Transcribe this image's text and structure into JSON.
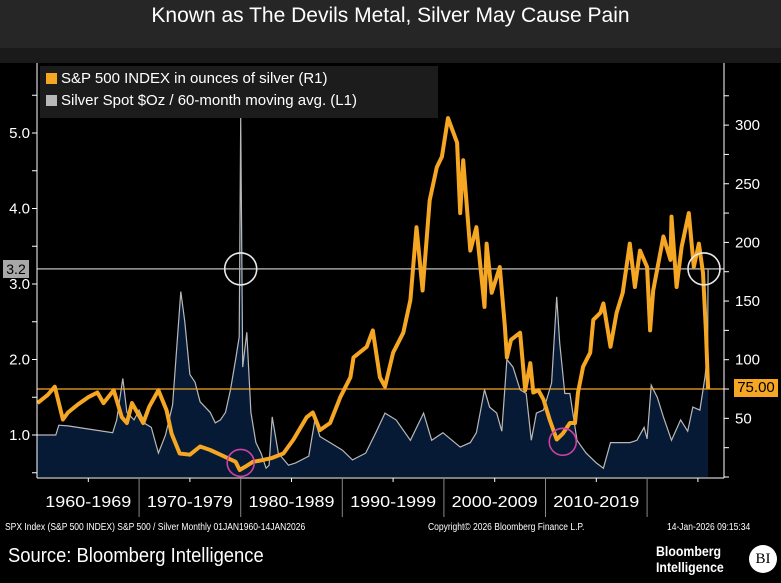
{
  "title": "Known as The Devils Metal, Silver May Cause Pain",
  "legend": [
    {
      "label": "S&P 500 INDEX in ounces of silver (R1)",
      "color": "#f5a623"
    },
    {
      "label": "Silver Spot $Oz / 60-month moving avg. (L1)",
      "color": "#b8b8b8"
    }
  ],
  "chart_data": {
    "type": "line",
    "xlabel": "",
    "x_range": [
      1960,
      2026.04
    ],
    "x_tick_labels": [
      "1960-1969",
      "1970-1979",
      "1980-1989",
      "1990-1999",
      "2000-2009",
      "2010-2019"
    ],
    "left_axis": {
      "range": [
        0.45,
        5.5
      ],
      "tick_labels": [
        "1.0",
        "2.0",
        "3.0",
        "4.0",
        "5.0"
      ],
      "ticks": [
        1,
        2,
        3,
        4,
        5
      ]
    },
    "right_axis": {
      "range": [
        0,
        320
      ],
      "tick_labels": [
        "50",
        "100",
        "150",
        "200",
        "250",
        "300"
      ],
      "ticks": [
        50,
        100,
        150,
        200,
        250,
        300
      ]
    },
    "grid": false,
    "legend_position": "top-left",
    "series": [
      {
        "name": "S&P 500 INDEX in ounces of silver (R1)",
        "axis": "right",
        "color": "#f5a623",
        "points": [
          [
            1960,
            63
          ],
          [
            1961,
            70
          ],
          [
            1961.7,
            77
          ],
          [
            1962.5,
            49
          ],
          [
            1963,
            55
          ],
          [
            1964,
            62
          ],
          [
            1965,
            68
          ],
          [
            1965.9,
            72
          ],
          [
            1966.5,
            63
          ],
          [
            1967.5,
            74
          ],
          [
            1968.3,
            51
          ],
          [
            1968.8,
            46
          ],
          [
            1969.3,
            63
          ],
          [
            1970.4,
            46
          ],
          [
            1971,
            60
          ],
          [
            1971.9,
            74
          ],
          [
            1972.7,
            57
          ],
          [
            1973.2,
            37
          ],
          [
            1974,
            20
          ],
          [
            1975,
            19
          ],
          [
            1976,
            26
          ],
          [
            1977,
            23
          ],
          [
            1978,
            19
          ],
          [
            1979.5,
            13
          ],
          [
            1979.9,
            6
          ],
          [
            1980.5,
            9
          ],
          [
            1981.2,
            13
          ],
          [
            1981.9,
            14
          ],
          [
            1983,
            16
          ],
          [
            1984.2,
            20
          ],
          [
            1985.2,
            32
          ],
          [
            1986.5,
            51
          ],
          [
            1987.1,
            55
          ],
          [
            1987.8,
            40
          ],
          [
            1988.8,
            46
          ],
          [
            1989.8,
            68
          ],
          [
            1990.8,
            85
          ],
          [
            1991.1,
            102
          ],
          [
            1992.4,
            111
          ],
          [
            1993,
            125
          ],
          [
            1993.7,
            85
          ],
          [
            1994.2,
            77
          ],
          [
            1995,
            106
          ],
          [
            1996,
            123
          ],
          [
            1996.7,
            151
          ],
          [
            1997.3,
            213
          ],
          [
            1997.9,
            159
          ],
          [
            1998.6,
            236
          ],
          [
            1999.3,
            264
          ],
          [
            1999.8,
            273
          ],
          [
            2000.4,
            306
          ],
          [
            2001.3,
            285
          ],
          [
            2001.6,
            225
          ],
          [
            2001.9,
            270
          ],
          [
            2002.6,
            193
          ],
          [
            2003.2,
            213
          ],
          [
            2004,
            145
          ],
          [
            2004.2,
            199
          ],
          [
            2004.7,
            157
          ],
          [
            2005.5,
            179
          ],
          [
            2006,
            128
          ],
          [
            2006.2,
            102
          ],
          [
            2006.6,
            117
          ],
          [
            2007.5,
            123
          ],
          [
            2008,
            74
          ],
          [
            2008.5,
            97
          ],
          [
            2008.8,
            72
          ],
          [
            2009.3,
            74
          ],
          [
            2009.8,
            66
          ],
          [
            2010.4,
            49
          ],
          [
            2011.1,
            32
          ],
          [
            2011.7,
            37
          ],
          [
            2012.4,
            46
          ],
          [
            2012.9,
            46
          ],
          [
            2013.2,
            72
          ],
          [
            2013.7,
            94
          ],
          [
            2014.4,
            106
          ],
          [
            2014.7,
            134
          ],
          [
            2015.4,
            140
          ],
          [
            2015.7,
            148
          ],
          [
            2016.4,
            111
          ],
          [
            2017,
            140
          ],
          [
            2017.6,
            157
          ],
          [
            2018.3,
            199
          ],
          [
            2018.8,
            162
          ],
          [
            2019.3,
            193
          ],
          [
            2020,
            179
          ],
          [
            2020.3,
            125
          ],
          [
            2020.6,
            159
          ],
          [
            2021.6,
            205
          ],
          [
            2022.3,
            185
          ],
          [
            2022.4,
            222
          ],
          [
            2022.9,
            162
          ],
          [
            2023.4,
            196
          ],
          [
            2024.1,
            225
          ],
          [
            2024.6,
            179
          ],
          [
            2025.1,
            199
          ],
          [
            2025.5,
            174
          ],
          [
            2025.8,
            123
          ],
          [
            2026.0,
            75
          ]
        ]
      },
      {
        "name": "Silver Spot $Oz / 60-month moving avg. (L1)",
        "axis": "left",
        "color": "#b8b8b8",
        "fill": "#061a36",
        "points": [
          [
            1960,
            1.0
          ],
          [
            1961.8,
            1.0
          ],
          [
            1962.1,
            1.13
          ],
          [
            1963,
            1.12
          ],
          [
            1965,
            1.08
          ],
          [
            1967.4,
            1.03
          ],
          [
            1967.8,
            1.2
          ],
          [
            1968.4,
            1.75
          ],
          [
            1968.8,
            1.3
          ],
          [
            1969.5,
            1.2
          ],
          [
            1970,
            1.33
          ],
          [
            1970.6,
            1.15
          ],
          [
            1971.2,
            1.1
          ],
          [
            1971.9,
            0.76
          ],
          [
            1972.6,
            1.0
          ],
          [
            1973.3,
            1.4
          ],
          [
            1974.1,
            2.9
          ],
          [
            1974.5,
            2.5
          ],
          [
            1975,
            1.8
          ],
          [
            1975.5,
            1.7
          ],
          [
            1976,
            1.44
          ],
          [
            1977,
            1.3
          ],
          [
            1977.5,
            1.16
          ],
          [
            1978,
            1.2
          ],
          [
            1978.5,
            1.3
          ],
          [
            1979,
            1.6
          ],
          [
            1979.5,
            2.0
          ],
          [
            1979.85,
            2.3
          ],
          [
            1980.0,
            5.2
          ],
          [
            1980.2,
            1.9
          ],
          [
            1980.6,
            2.36
          ],
          [
            1981,
            1.3
          ],
          [
            1981.5,
            0.9
          ],
          [
            1982,
            0.76
          ],
          [
            1982.5,
            0.56
          ],
          [
            1982.8,
            0.6
          ],
          [
            1983.1,
            1.24
          ],
          [
            1983.7,
            0.76
          ],
          [
            1984.7,
            0.6
          ],
          [
            1985.4,
            0.63
          ],
          [
            1986.7,
            0.72
          ],
          [
            1987.3,
            1.2
          ],
          [
            1987.8,
            0.98
          ],
          [
            1988.8,
            0.9
          ],
          [
            1990,
            0.8
          ],
          [
            1991,
            0.67
          ],
          [
            1992.3,
            0.76
          ],
          [
            1993.3,
            1.03
          ],
          [
            1994.2,
            1.29
          ],
          [
            1995.3,
            1.2
          ],
          [
            1996.7,
            0.93
          ],
          [
            1998,
            1.29
          ],
          [
            1998.8,
            0.93
          ],
          [
            1999.9,
            1.03
          ],
          [
            2001.6,
            0.84
          ],
          [
            2002.6,
            0.9
          ],
          [
            2003.2,
            1.03
          ],
          [
            2004,
            1.6
          ],
          [
            2004.5,
            1.37
          ],
          [
            2005.2,
            1.29
          ],
          [
            2005.7,
            1.05
          ],
          [
            2006.2,
            2.0
          ],
          [
            2006.8,
            1.9
          ],
          [
            2007.5,
            1.6
          ],
          [
            2008.1,
            1.55
          ],
          [
            2008.6,
            0.93
          ],
          [
            2009.1,
            1.29
          ],
          [
            2009.8,
            1.33
          ],
          [
            2010.6,
            1.69
          ],
          [
            2011.1,
            2.83
          ],
          [
            2011.4,
            2.22
          ],
          [
            2011.9,
            1.55
          ],
          [
            2012.4,
            1.55
          ],
          [
            2013.1,
            0.93
          ],
          [
            2014,
            0.76
          ],
          [
            2015,
            0.63
          ],
          [
            2015.7,
            0.56
          ],
          [
            2016.4,
            0.9
          ],
          [
            2017.4,
            0.9
          ],
          [
            2018.3,
            0.9
          ],
          [
            2019,
            0.93
          ],
          [
            2019.7,
            1.1
          ],
          [
            2020,
            0.95
          ],
          [
            2020.4,
            1.66
          ],
          [
            2021,
            1.5
          ],
          [
            2021.6,
            1.24
          ],
          [
            2022.4,
            0.93
          ],
          [
            2023.3,
            1.2
          ],
          [
            2024,
            1.05
          ],
          [
            2024.5,
            1.37
          ],
          [
            2025.2,
            1.33
          ],
          [
            2025.7,
            1.77
          ],
          [
            2025.95,
            2.1
          ],
          [
            2026.0,
            3.2
          ]
        ]
      }
    ],
    "reference_lines": [
      {
        "axis": "left",
        "value": 3.2,
        "label": "3.2",
        "color": "#a0a0a0"
      },
      {
        "axis": "right",
        "value": 75,
        "label": "75.00",
        "color": "#f5a623"
      }
    ],
    "annotations": [
      {
        "type": "circle",
        "color": "#e8e8e8",
        "x": 1980.0,
        "axis": "left",
        "y": 3.2
      },
      {
        "type": "circle",
        "color": "#d040a0",
        "x": 1980.0,
        "axis": "right",
        "y": 12
      },
      {
        "type": "circle",
        "color": "#d040a0",
        "x": 2011.7,
        "axis": "right",
        "y": 30
      },
      {
        "type": "circle",
        "color": "#e8e8e8",
        "x": 2025.6,
        "axis": "left",
        "y": 3.2
      }
    ]
  },
  "footer": {
    "series_info": "SPX Index (S&P 500 INDEX) S&P 500 / Silver Monthly 01JAN1960-14JAN2026",
    "copyright": "Copyright© 2026 Bloomberg Finance L.P.",
    "timestamp": "14-Jan-2026 09:15:34",
    "source": "Source: Bloomberg Intelligence",
    "logo_text_1": "Bloomberg",
    "logo_text_2": "Intelligence",
    "logo_badge": "BI"
  }
}
